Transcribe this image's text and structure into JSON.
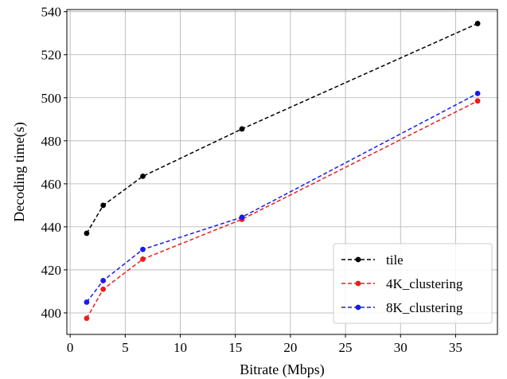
{
  "chart_data": {
    "type": "line",
    "xlabel": "Bitrate (Mbps)",
    "ylabel": "Decoding time(s)",
    "xlim": [
      -0.3,
      38.8
    ],
    "ylim": [
      390,
      541
    ],
    "xticks": [
      0,
      5,
      10,
      15,
      20,
      25,
      30,
      35
    ],
    "yticks": [
      400,
      420,
      440,
      460,
      480,
      500,
      520,
      540
    ],
    "grid": true,
    "legend_position": "bottom-right",
    "series": [
      {
        "name": "tile",
        "color": "#000000",
        "x": [
          1.5,
          3.0,
          6.6,
          15.6,
          37.0
        ],
        "y": [
          437,
          450,
          463.5,
          485.5,
          534.5
        ]
      },
      {
        "name": "4K_clustering",
        "color": "#ee1c1c",
        "x": [
          1.5,
          3.0,
          6.6,
          15.6,
          37.0
        ],
        "y": [
          397.5,
          411,
          425,
          443.5,
          498.5
        ]
      },
      {
        "name": "8K_clustering",
        "color": "#1a1aee",
        "x": [
          1.5,
          3.0,
          6.6,
          15.6,
          37.0
        ],
        "y": [
          405,
          415,
          429.5,
          444.5,
          502
        ]
      }
    ]
  }
}
